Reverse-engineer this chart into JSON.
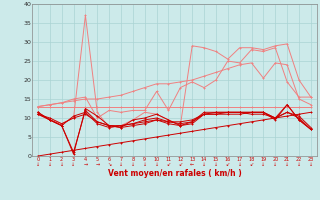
{
  "xlabel": "Vent moyen/en rafales ( km/h )",
  "x": [
    0,
    1,
    2,
    3,
    4,
    5,
    6,
    7,
    8,
    9,
    10,
    11,
    12,
    13,
    14,
    15,
    16,
    17,
    18,
    19,
    20,
    21,
    22,
    23
  ],
  "line_flat": [
    13.0,
    13.0,
    13.0,
    13.0,
    13.0,
    13.0,
    13.0,
    13.0,
    13.0,
    13.0,
    13.0,
    13.0,
    13.0,
    13.0,
    13.0,
    13.0,
    13.0,
    13.0,
    13.0,
    13.0,
    13.0,
    13.0,
    13.0,
    13.0
  ],
  "line_rising1": [
    13.0,
    13.5,
    14.0,
    14.5,
    15.0,
    15.0,
    15.5,
    16.0,
    17.0,
    18.0,
    19.0,
    19.0,
    19.5,
    20.0,
    21.0,
    22.0,
    23.0,
    24.0,
    24.5,
    20.5,
    24.5,
    24.0,
    15.0,
    13.5
  ],
  "line_rising2": [
    13.0,
    13.5,
    14.0,
    15.0,
    15.5,
    10.0,
    12.0,
    11.5,
    12.0,
    12.0,
    17.0,
    12.0,
    18.0,
    19.5,
    18.0,
    20.0,
    25.0,
    24.5,
    28.0,
    27.5,
    28.5,
    19.5,
    15.5,
    15.5
  ],
  "line_spiky": [
    11.0,
    9.5,
    8.5,
    10.0,
    37.0,
    11.5,
    7.5,
    8.0,
    9.5,
    11.5,
    11.0,
    9.5,
    8.0,
    29.0,
    28.5,
    27.5,
    25.5,
    28.5,
    28.5,
    28.0,
    29.0,
    29.5,
    20.0,
    15.5
  ],
  "line_dark1": [
    11.5,
    9.5,
    8.0,
    1.0,
    12.0,
    9.0,
    8.0,
    7.5,
    8.0,
    8.5,
    9.5,
    8.5,
    8.0,
    8.5,
    11.0,
    11.0,
    11.0,
    11.0,
    11.5,
    11.5,
    10.0,
    13.5,
    9.5,
    7.0
  ],
  "line_dark2": [
    11.0,
    9.5,
    8.0,
    10.5,
    11.5,
    8.5,
    7.5,
    8.0,
    8.5,
    9.0,
    9.5,
    9.0,
    8.5,
    9.0,
    11.0,
    11.0,
    11.5,
    11.5,
    11.0,
    11.0,
    10.0,
    11.5,
    10.0,
    7.0
  ],
  "line_dark3": [
    11.0,
    10.0,
    8.5,
    10.0,
    11.0,
    9.0,
    8.0,
    8.0,
    8.5,
    9.5,
    10.0,
    9.0,
    9.0,
    9.5,
    11.0,
    11.5,
    11.5,
    11.5,
    11.5,
    11.5,
    10.0,
    11.5,
    10.5,
    7.5
  ],
  "line_dark4": [
    11.5,
    9.5,
    8.0,
    0.5,
    12.5,
    10.5,
    8.0,
    7.5,
    9.5,
    10.0,
    11.0,
    9.5,
    8.0,
    9.0,
    11.5,
    11.5,
    11.5,
    11.5,
    11.5,
    11.5,
    9.5,
    13.5,
    9.5,
    7.0
  ],
  "line_bottom": [
    0.0,
    0.5,
    1.0,
    1.5,
    2.0,
    2.5,
    3.0,
    3.5,
    4.0,
    4.5,
    5.0,
    5.5,
    6.0,
    6.5,
    7.0,
    7.5,
    8.0,
    8.5,
    9.0,
    9.5,
    10.0,
    10.5,
    11.0,
    11.5
  ],
  "arrows": [
    "↓",
    "↓",
    "↓",
    "↓",
    "→",
    "→",
    "↘",
    "↓",
    "↓",
    "↓",
    "↓",
    "↙",
    "↙",
    "←",
    "↓",
    "↓",
    "↙",
    "↓",
    "↙",
    "↓",
    "↓",
    "↓",
    "↓",
    "↓"
  ],
  "bg_color": "#cceaea",
  "grid_color": "#aad4d4",
  "color_light": "#f08080",
  "color_dark": "#cc0000",
  "ylim": [
    0,
    40
  ],
  "yticks": [
    0,
    5,
    10,
    15,
    20,
    25,
    30,
    35,
    40
  ]
}
